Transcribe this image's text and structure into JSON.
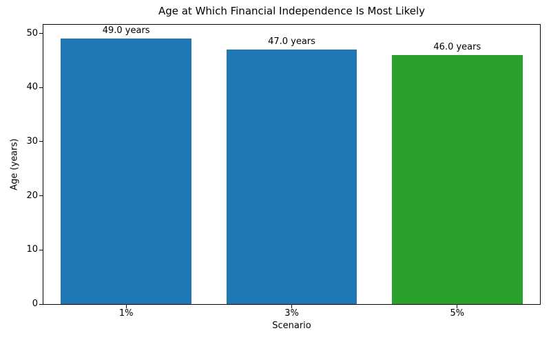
{
  "chart_data": {
    "type": "bar",
    "title": "Age at Which Financial Independence Is Most Likely",
    "xlabel": "Scenario",
    "ylabel": "Age (years)",
    "categories": [
      "1%",
      "3%",
      "5%"
    ],
    "values": [
      49.0,
      47.0,
      46.0
    ],
    "bar_labels": [
      "49.0 years",
      "47.0 years",
      "46.0 years"
    ],
    "bar_colors": [
      "#1f77b4",
      "#1f77b4",
      "#2ca02c"
    ],
    "ylim": [
      0,
      51.6
    ],
    "yticks": [
      0,
      10,
      20,
      30,
      40,
      50
    ],
    "grid": false,
    "legend": false,
    "background_color": "#ffffff",
    "spine_color": "#000000",
    "text_color": "#000000"
  }
}
